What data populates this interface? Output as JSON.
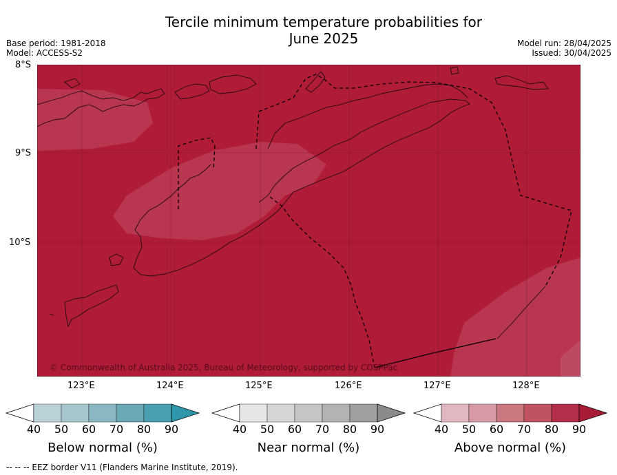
{
  "title_line1": "Tercile minimum temperature probabilities for",
  "title_line2": "June 2025",
  "base_period": "Base period: 1981-2018",
  "model": "Model: ACCESS-S2",
  "model_run": "Model run: 28/04/2025",
  "issued": "Issued: 30/04/2025",
  "lat_labels": [
    "8°S",
    "9°S",
    "10°S"
  ],
  "lon_labels": [
    "123°E",
    "124°E",
    "125°E",
    "126°E",
    "127°E",
    "128°E"
  ],
  "copyright": "© Commonwealth of Australia 2025, Bureau of Meteorology, supported by COSPPac",
  "colorbars": [
    {
      "label": "Below normal (%)",
      "ticks": [
        "40",
        "50",
        "60",
        "70",
        "80",
        "90"
      ],
      "colors": [
        "#ffffff",
        "#bcd2d9",
        "#a6c7cd",
        "#8ab8c2",
        "#6aa8b6",
        "#4aa0b2",
        "#2e97ab"
      ]
    },
    {
      "label": "Near normal (%)",
      "ticks": [
        "40",
        "50",
        "60",
        "70",
        "80",
        "90"
      ],
      "colors": [
        "#ffffff",
        "#e6e6e6",
        "#d6d6d6",
        "#c6c6c6",
        "#b3b3b3",
        "#a0a0a0",
        "#8a8a8a"
      ]
    },
    {
      "label": "Above normal (%)",
      "ticks": [
        "40",
        "50",
        "60",
        "70",
        "80",
        "90"
      ],
      "colors": [
        "#ffffff",
        "#e2b8c0",
        "#d89aa4",
        "#cc7880",
        "#c05262",
        "#b32f4a",
        "#a81c38"
      ]
    }
  ],
  "footer": "--  --  -- EEZ border V11 (Flanders Marine Institute, 2019).",
  "map_colors": {
    "above_90": "#b01c38",
    "above_80": "#b93650"
  }
}
